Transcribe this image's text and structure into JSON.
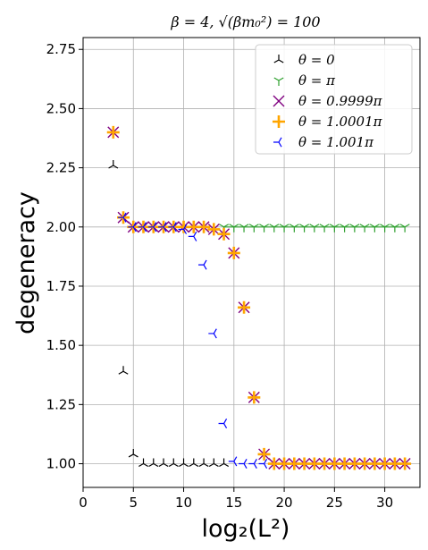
{
  "chart_data": {
    "type": "scatter",
    "title": "β = 4, √(βm₀²) = 100",
    "xlabel": "log₂(L²)",
    "ylabel": "degeneracy",
    "xlim": [
      0,
      33.5
    ],
    "ylim": [
      0.9,
      2.8
    ],
    "x_ticks": [
      0,
      5,
      10,
      15,
      20,
      25,
      30
    ],
    "y_ticks": [
      1.0,
      1.25,
      1.5,
      1.75,
      2.0,
      2.25,
      2.5,
      2.75
    ],
    "y_tick_labels": [
      "1.00",
      "1.25",
      "1.50",
      "1.75",
      "2.00",
      "2.25",
      "2.50",
      "2.75"
    ],
    "grid": true,
    "legend_position": "top-right",
    "series": [
      {
        "name": "θ = 0",
        "marker": "tri_down",
        "color": "#000000",
        "points": [
          [
            3,
            2.26
          ],
          [
            4,
            1.39
          ],
          [
            5,
            1.04
          ],
          [
            6,
            1.0
          ],
          [
            7,
            1.0
          ],
          [
            8,
            1.0
          ],
          [
            9,
            1.0
          ],
          [
            10,
            1.0
          ],
          [
            11,
            1.0
          ],
          [
            12,
            1.0
          ],
          [
            13,
            1.0
          ],
          [
            14,
            1.0
          ]
        ]
      },
      {
        "name": "θ = π",
        "marker": "tri_up",
        "color": "#2ca02c",
        "line": true,
        "points": [
          [
            14,
            2.0
          ],
          [
            15,
            2.0
          ],
          [
            16,
            2.0
          ],
          [
            17,
            2.0
          ],
          [
            18,
            2.0
          ],
          [
            19,
            2.0
          ],
          [
            20,
            2.0
          ],
          [
            21,
            2.0
          ],
          [
            22,
            2.0
          ],
          [
            23,
            2.0
          ],
          [
            24,
            2.0
          ],
          [
            25,
            2.0
          ],
          [
            26,
            2.0
          ],
          [
            27,
            2.0
          ],
          [
            28,
            2.0
          ],
          [
            29,
            2.0
          ],
          [
            30,
            2.0
          ],
          [
            31,
            2.0
          ],
          [
            32,
            2.0
          ]
        ]
      },
      {
        "name": "θ = 0.9999π",
        "marker": "x",
        "color": "#800080",
        "points": [
          [
            3,
            2.4
          ],
          [
            4,
            2.04
          ],
          [
            5,
            2.0
          ],
          [
            6,
            2.0
          ],
          [
            7,
            2.0
          ],
          [
            8,
            2.0
          ],
          [
            9,
            2.0
          ],
          [
            10,
            2.0
          ],
          [
            11,
            2.0
          ],
          [
            12,
            2.0
          ],
          [
            13,
            1.99
          ],
          [
            14,
            1.97
          ],
          [
            15,
            1.89
          ],
          [
            16,
            1.66
          ],
          [
            17,
            1.28
          ],
          [
            18,
            1.04
          ],
          [
            19,
            1.0
          ],
          [
            20,
            1.0
          ],
          [
            21,
            1.0
          ],
          [
            22,
            1.0
          ],
          [
            23,
            1.0
          ],
          [
            24,
            1.0
          ],
          [
            25,
            1.0
          ],
          [
            26,
            1.0
          ],
          [
            27,
            1.0
          ],
          [
            28,
            1.0
          ],
          [
            29,
            1.0
          ],
          [
            30,
            1.0
          ],
          [
            31,
            1.0
          ],
          [
            32,
            1.0
          ]
        ]
      },
      {
        "name": "θ = 1.0001π",
        "marker": "plus",
        "color": "#ffa500",
        "points": [
          [
            3,
            2.4
          ],
          [
            4,
            2.04
          ],
          [
            5,
            2.0
          ],
          [
            6,
            2.0
          ],
          [
            7,
            2.0
          ],
          [
            8,
            2.0
          ],
          [
            9,
            2.0
          ],
          [
            10,
            2.0
          ],
          [
            11,
            2.0
          ],
          [
            12,
            2.0
          ],
          [
            13,
            1.99
          ],
          [
            14,
            1.97
          ],
          [
            15,
            1.89
          ],
          [
            16,
            1.66
          ],
          [
            17,
            1.28
          ],
          [
            18,
            1.04
          ],
          [
            19,
            1.0
          ],
          [
            20,
            1.0
          ],
          [
            21,
            1.0
          ],
          [
            22,
            1.0
          ],
          [
            23,
            1.0
          ],
          [
            24,
            1.0
          ],
          [
            25,
            1.0
          ],
          [
            26,
            1.0
          ],
          [
            27,
            1.0
          ],
          [
            28,
            1.0
          ],
          [
            29,
            1.0
          ],
          [
            30,
            1.0
          ],
          [
            31,
            1.0
          ],
          [
            32,
            1.0
          ]
        ]
      },
      {
        "name": "θ = 1.001π",
        "marker": "tri_left",
        "color": "#0000ff",
        "points": [
          [
            4,
            2.04
          ],
          [
            5,
            2.0
          ],
          [
            6,
            2.0
          ],
          [
            7,
            2.0
          ],
          [
            8,
            2.0
          ],
          [
            9,
            2.0
          ],
          [
            10,
            1.99
          ],
          [
            11,
            1.96
          ],
          [
            12,
            1.84
          ],
          [
            13,
            1.55
          ],
          [
            14,
            1.17
          ],
          [
            15,
            1.01
          ],
          [
            16,
            1.0
          ],
          [
            17,
            1.0
          ],
          [
            18,
            1.0
          ]
        ]
      }
    ]
  }
}
